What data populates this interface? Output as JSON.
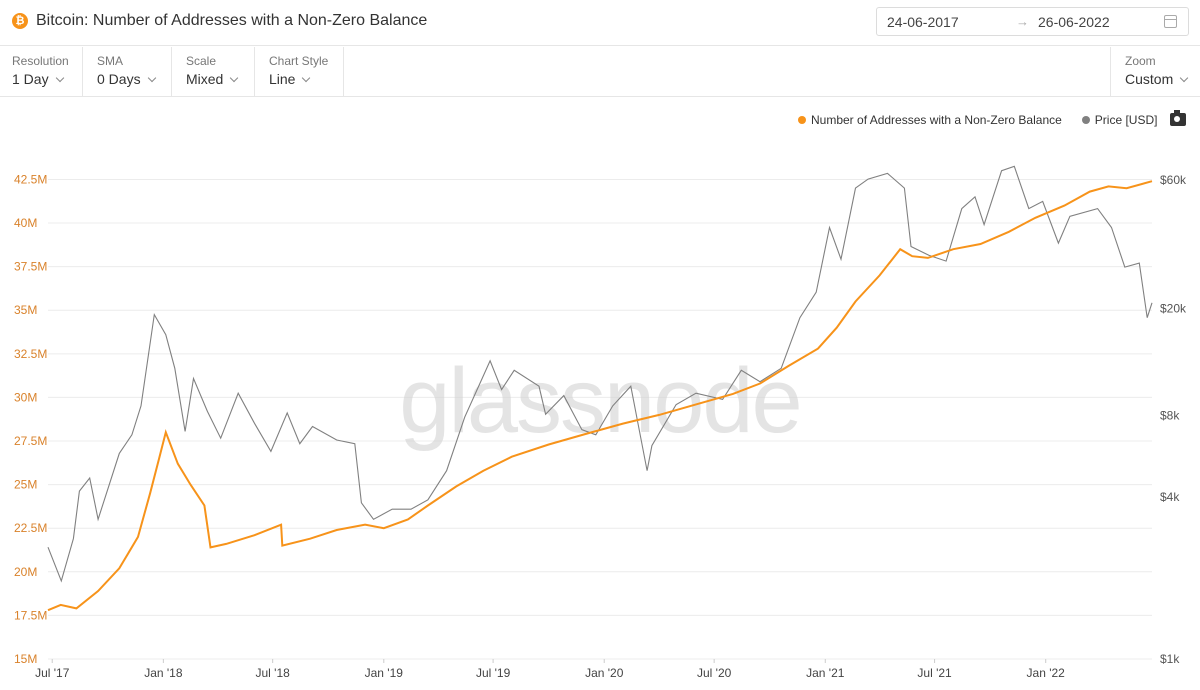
{
  "header": {
    "coin_symbol": "₿",
    "title": "Bitcoin: Number of Addresses with a Non-Zero Balance",
    "date_from": "24-06-2017",
    "date_arrow": "→",
    "date_to": "26-06-2022"
  },
  "controls": {
    "resolution": {
      "label": "Resolution",
      "value": "1 Day"
    },
    "sma": {
      "label": "SMA",
      "value": "0 Days"
    },
    "scale": {
      "label": "Scale",
      "value": "Mixed"
    },
    "chart_style": {
      "label": "Chart Style",
      "value": "Line"
    },
    "zoom": {
      "label": "Zoom",
      "value": "Custom"
    }
  },
  "legend": {
    "addresses": "Number of Addresses with a Non-Zero Balance",
    "price": "Price [USD]"
  },
  "watermark": "glassnode",
  "colors": {
    "addresses": "#f7931a",
    "price": "#808080",
    "left_axis": "#d9822b",
    "grid": "#ececec"
  },
  "chart_data": {
    "type": "line",
    "x_ticks": [
      "Jul '17",
      "Jan '18",
      "Jul '18",
      "Jan '19",
      "Jul '19",
      "Jan '20",
      "Jul '20",
      "Jan '21",
      "Jul '21",
      "Jan '22"
    ],
    "x_range": [
      "2017-06-24",
      "2022-06-26"
    ],
    "left_axis": {
      "ticks": [
        "15M",
        "17.5M",
        "20M",
        "22.5M",
        "25M",
        "27.5M",
        "30M",
        "32.5M",
        "35M",
        "37.5M",
        "40M",
        "42.5M"
      ],
      "range": [
        15,
        43.5
      ],
      "unit": "M"
    },
    "right_axis": {
      "ticks": [
        "$1k",
        "$4k",
        "$8k",
        "$20k",
        "$60k"
      ],
      "scale": "log",
      "range": [
        1000,
        70000
      ]
    },
    "grid": true,
    "legend_position": "top-right",
    "series": [
      {
        "name": "Number of Addresses with a Non-Zero Balance",
        "axis": "left",
        "points": [
          [
            "2017-06-24",
            17.8
          ],
          [
            "2017-07-15",
            18.1
          ],
          [
            "2017-08-10",
            17.9
          ],
          [
            "2017-09-15",
            18.9
          ],
          [
            "2017-10-20",
            20.2
          ],
          [
            "2017-11-20",
            22.0
          ],
          [
            "2017-12-10",
            24.5
          ],
          [
            "2017-12-25",
            26.5
          ],
          [
            "2018-01-05",
            28.0
          ],
          [
            "2018-01-25",
            26.2
          ],
          [
            "2018-02-15",
            25.0
          ],
          [
            "2018-03-10",
            23.8
          ],
          [
            "2018-03-20",
            21.4
          ],
          [
            "2018-04-15",
            21.6
          ],
          [
            "2018-06-01",
            22.1
          ],
          [
            "2018-07-15",
            22.7
          ],
          [
            "2018-07-17",
            21.5
          ],
          [
            "2018-09-01",
            21.9
          ],
          [
            "2018-10-15",
            22.4
          ],
          [
            "2018-12-01",
            22.7
          ],
          [
            "2019-01-01",
            22.5
          ],
          [
            "2019-02-10",
            23.0
          ],
          [
            "2019-03-15",
            23.8
          ],
          [
            "2019-05-01",
            24.9
          ],
          [
            "2019-06-15",
            25.8
          ],
          [
            "2019-08-01",
            26.6
          ],
          [
            "2019-10-01",
            27.3
          ],
          [
            "2019-12-01",
            27.9
          ],
          [
            "2020-02-01",
            28.5
          ],
          [
            "2020-04-01",
            29.0
          ],
          [
            "2020-06-01",
            29.6
          ],
          [
            "2020-08-01",
            30.2
          ],
          [
            "2020-09-15",
            30.8
          ],
          [
            "2020-11-01",
            31.8
          ],
          [
            "2020-12-20",
            32.8
          ],
          [
            "2021-01-20",
            34.0
          ],
          [
            "2021-02-20",
            35.5
          ],
          [
            "2021-04-01",
            37.0
          ],
          [
            "2021-05-05",
            38.5
          ],
          [
            "2021-05-25",
            38.1
          ],
          [
            "2021-06-20",
            38.0
          ],
          [
            "2021-08-01",
            38.5
          ],
          [
            "2021-09-15",
            38.8
          ],
          [
            "2021-11-01",
            39.5
          ],
          [
            "2021-12-15",
            40.3
          ],
          [
            "2022-02-01",
            41.0
          ],
          [
            "2022-03-15",
            41.8
          ],
          [
            "2022-04-15",
            42.1
          ],
          [
            "2022-05-15",
            42.0
          ],
          [
            "2022-06-26",
            42.4
          ]
        ]
      },
      {
        "name": "Price [USD]",
        "axis": "right",
        "points": [
          [
            "2017-06-24",
            2600
          ],
          [
            "2017-07-16",
            1950
          ],
          [
            "2017-08-05",
            2800
          ],
          [
            "2017-08-15",
            4200
          ],
          [
            "2017-09-01",
            4700
          ],
          [
            "2017-09-15",
            3300
          ],
          [
            "2017-10-20",
            5800
          ],
          [
            "2017-11-10",
            6800
          ],
          [
            "2017-11-25",
            8700
          ],
          [
            "2017-12-17",
            19000
          ],
          [
            "2018-01-05",
            16000
          ],
          [
            "2018-01-20",
            12000
          ],
          [
            "2018-02-06",
            7000
          ],
          [
            "2018-02-20",
            11000
          ],
          [
            "2018-03-15",
            8300
          ],
          [
            "2018-04-06",
            6600
          ],
          [
            "2018-05-05",
            9700
          ],
          [
            "2018-06-01",
            7500
          ],
          [
            "2018-06-28",
            5900
          ],
          [
            "2018-07-25",
            8200
          ],
          [
            "2018-08-15",
            6300
          ],
          [
            "2018-09-05",
            7300
          ],
          [
            "2018-10-15",
            6500
          ],
          [
            "2018-11-14",
            6300
          ],
          [
            "2018-11-25",
            3800
          ],
          [
            "2018-12-15",
            3300
          ],
          [
            "2019-01-15",
            3600
          ],
          [
            "2019-02-15",
            3600
          ],
          [
            "2019-03-15",
            3900
          ],
          [
            "2019-04-15",
            5000
          ],
          [
            "2019-05-15",
            7900
          ],
          [
            "2019-06-26",
            12800
          ],
          [
            "2019-07-15",
            10000
          ],
          [
            "2019-08-05",
            11800
          ],
          [
            "2019-09-15",
            10300
          ],
          [
            "2019-09-26",
            8100
          ],
          [
            "2019-10-26",
            9500
          ],
          [
            "2019-11-25",
            7100
          ],
          [
            "2019-12-18",
            6800
          ],
          [
            "2020-01-15",
            8700
          ],
          [
            "2020-02-14",
            10300
          ],
          [
            "2020-03-12",
            5000
          ],
          [
            "2020-03-20",
            6200
          ],
          [
            "2020-04-29",
            8800
          ],
          [
            "2020-06-01",
            9700
          ],
          [
            "2020-07-15",
            9200
          ],
          [
            "2020-08-15",
            11800
          ],
          [
            "2020-09-15",
            10700
          ],
          [
            "2020-10-20",
            12000
          ],
          [
            "2020-11-20",
            18500
          ],
          [
            "2020-12-17",
            23000
          ],
          [
            "2021-01-08",
            40000
          ],
          [
            "2021-01-27",
            30500
          ],
          [
            "2021-02-20",
            56000
          ],
          [
            "2021-03-13",
            60500
          ],
          [
            "2021-04-14",
            63500
          ],
          [
            "2021-05-12",
            56000
          ],
          [
            "2021-05-23",
            34000
          ],
          [
            "2021-06-22",
            31500
          ],
          [
            "2021-07-20",
            30000
          ],
          [
            "2021-08-15",
            47000
          ],
          [
            "2021-09-06",
            52000
          ],
          [
            "2021-09-21",
            41000
          ],
          [
            "2021-10-20",
            65000
          ],
          [
            "2021-11-10",
            67500
          ],
          [
            "2021-12-04",
            47000
          ],
          [
            "2021-12-27",
            50000
          ],
          [
            "2022-01-22",
            35000
          ],
          [
            "2022-02-10",
            44000
          ],
          [
            "2022-03-28",
            47000
          ],
          [
            "2022-04-20",
            40000
          ],
          [
            "2022-05-12",
            28500
          ],
          [
            "2022-06-05",
            29500
          ],
          [
            "2022-06-18",
            18500
          ],
          [
            "2022-06-26",
            21000
          ]
        ]
      }
    ]
  }
}
